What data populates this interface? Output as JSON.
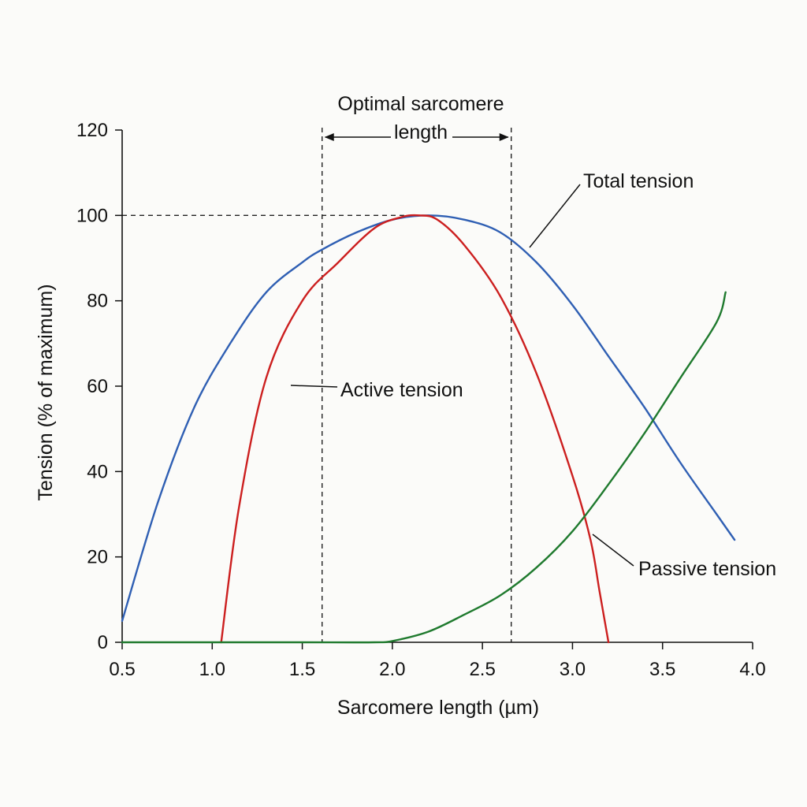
{
  "chart_data": {
    "type": "line",
    "title": "",
    "xlabel": "Sarcomere length (µm)",
    "ylabel": "Tension (% of maximum)",
    "xlim": [
      0.5,
      4.0
    ],
    "ylim": [
      0,
      120
    ],
    "x_ticks": [
      "0.5",
      "1.0",
      "1.5",
      "2.0",
      "2.5",
      "3.0",
      "3.5",
      "4.0"
    ],
    "y_ticks": [
      "0",
      "20",
      "40",
      "60",
      "80",
      "100",
      "120"
    ],
    "grid": false,
    "legend": "none",
    "series": [
      {
        "name": "Total tension",
        "color": "#2f5fb3",
        "points": [
          [
            0.5,
            5
          ],
          [
            0.7,
            33
          ],
          [
            0.9,
            55
          ],
          [
            1.1,
            70
          ],
          [
            1.3,
            82
          ],
          [
            1.5,
            89
          ],
          [
            1.61,
            92
          ],
          [
            1.8,
            96
          ],
          [
            2.0,
            99
          ],
          [
            2.2,
            100
          ],
          [
            2.4,
            99
          ],
          [
            2.6,
            96
          ],
          [
            2.8,
            89
          ],
          [
            3.0,
            79
          ],
          [
            3.2,
            67
          ],
          [
            3.4,
            55
          ],
          [
            3.6,
            42
          ],
          [
            3.8,
            30
          ],
          [
            3.9,
            24
          ]
        ]
      },
      {
        "name": "Active tension",
        "color": "#cc1f1f",
        "points": [
          [
            1.05,
            0
          ],
          [
            1.15,
            32
          ],
          [
            1.3,
            62
          ],
          [
            1.5,
            80
          ],
          [
            1.7,
            89
          ],
          [
            1.9,
            97
          ],
          [
            2.05,
            99.6
          ],
          [
            2.15,
            100
          ],
          [
            2.25,
            99
          ],
          [
            2.4,
            93
          ],
          [
            2.6,
            81
          ],
          [
            2.8,
            63
          ],
          [
            3.0,
            39
          ],
          [
            3.1,
            24
          ],
          [
            3.15,
            12
          ],
          [
            3.2,
            0
          ]
        ]
      },
      {
        "name": "Passive tension",
        "color": "#1f7a2e",
        "points": [
          [
            0.5,
            0
          ],
          [
            1.0,
            0
          ],
          [
            1.5,
            0
          ],
          [
            1.9,
            0
          ],
          [
            2.0,
            0.3
          ],
          [
            2.2,
            2.5
          ],
          [
            2.4,
            6.5
          ],
          [
            2.6,
            11
          ],
          [
            2.8,
            17.5
          ],
          [
            3.0,
            26
          ],
          [
            3.2,
            37
          ],
          [
            3.4,
            49
          ],
          [
            3.6,
            62
          ],
          [
            3.8,
            75
          ],
          [
            3.85,
            82
          ]
        ]
      }
    ],
    "annotations": {
      "optimal_label_line1": "Optimal sarcomere",
      "optimal_label_line2": "length",
      "optimal_range": [
        1.61,
        2.66
      ],
      "reference_y": 100,
      "total_label": "Total tension",
      "active_label": "Active tension",
      "passive_label": "Passive tension"
    }
  }
}
